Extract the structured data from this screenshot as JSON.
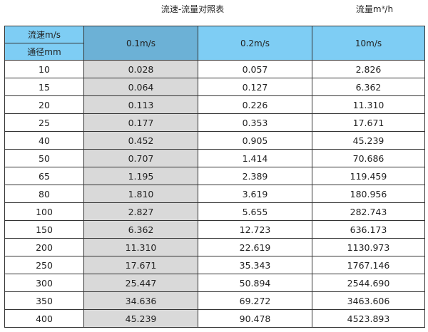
{
  "title": "流速-流量对照表",
  "unit_label": "流量m³/h",
  "header": {
    "velocity_label": "流速m/s",
    "diameter_label": "通径mm",
    "columns": [
      "0.1m/s",
      "0.2m/s",
      "10m/s"
    ]
  },
  "colors": {
    "header_blue": "#7ecdf4",
    "highlight_header": "#6cb1d6",
    "highlight_column": "#d9d9d9"
  },
  "rows": [
    [
      "10",
      "0.028",
      "0.057",
      "2.826"
    ],
    [
      "15",
      "0.064",
      "0.127",
      "6.362"
    ],
    [
      "20",
      "0.113",
      "0.226",
      "11.310"
    ],
    [
      "25",
      "0.177",
      "0.353",
      "17.671"
    ],
    [
      "40",
      "0.452",
      "0.905",
      "45.239"
    ],
    [
      "50",
      "0.707",
      "1.414",
      "70.686"
    ],
    [
      "65",
      "1.195",
      "2.389",
      "119.459"
    ],
    [
      "80",
      "1.810",
      "3.619",
      "180.956"
    ],
    [
      "100",
      "2.827",
      "5.655",
      "282.743"
    ],
    [
      "150",
      "6.362",
      "12.723",
      "636.173"
    ],
    [
      "200",
      "11.310",
      "22.619",
      "1130.973"
    ],
    [
      "250",
      "17.671",
      "35.343",
      "1767.146"
    ],
    [
      "300",
      "25.447",
      "50.894",
      "2544.690"
    ],
    [
      "350",
      "34.636",
      "69.272",
      "3463.606"
    ],
    [
      "400",
      "45.239",
      "90.478",
      "4523.893"
    ]
  ]
}
